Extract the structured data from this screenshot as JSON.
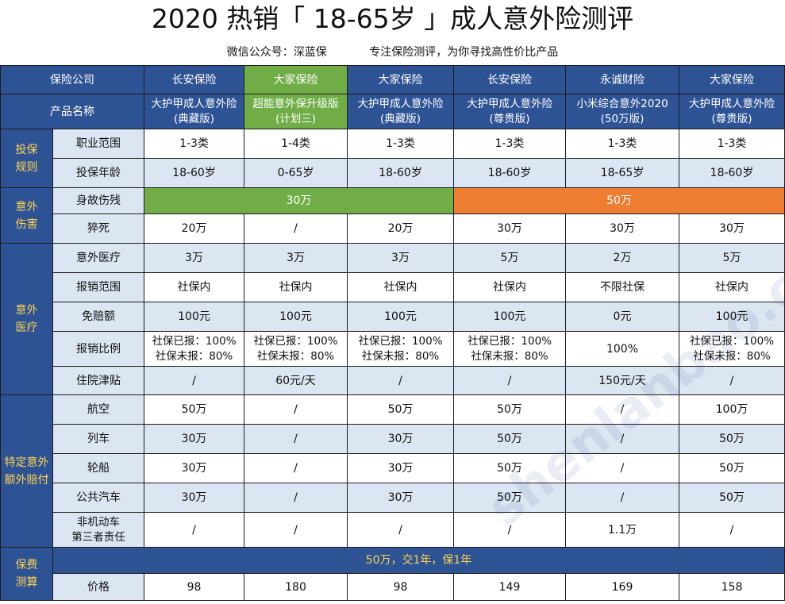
{
  "title": "2020 热销「 18-65岁 」成人意外险测评",
  "subtitle": "微信公众号：深蓝保            专注保险测评，为你寻找高性价比产品",
  "watermark": "shenlanbao.com 中立 | 专业 | 诚信",
  "header": {
    "company_label": "保险公司",
    "product_label": "产品名称",
    "companies": [
      "长安保险",
      "大家保险",
      "大家保险",
      "长安保险",
      "永诚财险",
      "大家保险"
    ],
    "products": [
      [
        "大护甲成人意外险",
        "(典藏版)"
      ],
      [
        "超能意外保升级版",
        "(计划三)"
      ],
      [
        "大护甲成人意外险",
        "(典藏版)"
      ],
      [
        "大护甲成人意外险",
        "(尊贵版)"
      ],
      [
        "小米综合意外2020",
        "(50万版)"
      ],
      [
        "大护甲成人意外险",
        "(尊贵版)"
      ]
    ]
  },
  "sections": {
    "rules": {
      "label": [
        "投保",
        "规则"
      ],
      "rows": [
        {
          "label": "职业范围",
          "values": [
            "1-3类",
            "1-4类",
            "1-3类",
            "1-3类",
            "1-3类",
            "1-3类"
          ]
        },
        {
          "label": "投保年龄",
          "values": [
            "18-60岁",
            "0-65岁",
            "18-60岁",
            "18-60岁",
            "18-65岁",
            "18-60岁"
          ]
        }
      ]
    },
    "injury": {
      "label": [
        "意外",
        "伤害"
      ],
      "death_label": "身故伤残",
      "death_group_a": "30万",
      "death_group_b": "50万",
      "sudden_label": "猝死",
      "sudden_values": [
        "20万",
        "/",
        "20万",
        "30万",
        "30万",
        "30万"
      ]
    },
    "medical": {
      "label": [
        "意外",
        "医疗"
      ],
      "rows": [
        {
          "label": "意外医疗",
          "values": [
            "3万",
            "3万",
            "3万",
            "5万",
            "2万",
            "5万"
          ]
        },
        {
          "label": "报销范围",
          "values": [
            "社保内",
            "社保内",
            "社保内",
            "社保内",
            "不限社保",
            "社保内"
          ]
        },
        {
          "label": "免赔额",
          "values": [
            "100元",
            "100元",
            "100元",
            "100元",
            "0元",
            "100元"
          ]
        }
      ],
      "ratio_label": "报销比例",
      "ratio_values": [
        [
          "社保已报：100%",
          "社保未报：80%"
        ],
        [
          "社保已报：100%",
          "社保未报：80%"
        ],
        [
          "社保已报：100%",
          "社保未报：80%"
        ],
        [
          "社保已报：100%",
          "社保未报：80%"
        ],
        [
          "100%",
          ""
        ],
        [
          "社保已报：100%",
          "社保未报：80%"
        ]
      ],
      "hospital_label": "住院津贴",
      "hospital_values": [
        "/",
        "60元/天",
        "/",
        "/",
        "150元/天",
        "/"
      ]
    },
    "special": {
      "label": [
        "特定意外",
        "额外赔付"
      ],
      "rows": [
        {
          "label": "航空",
          "values": [
            "50万",
            "/",
            "50万",
            "50万",
            "/",
            "100万"
          ]
        },
        {
          "label": "列车",
          "values": [
            "30万",
            "/",
            "30万",
            "50万",
            "/",
            "50万"
          ]
        },
        {
          "label": "轮船",
          "values": [
            "30万",
            "/",
            "30万",
            "50万",
            "/",
            "50万"
          ]
        },
        {
          "label": "公共汽车",
          "values": [
            "30万",
            "/",
            "30万",
            "50万",
            "/",
            "50万"
          ]
        }
      ],
      "third_party_label": [
        "非机动车",
        "第三者责任"
      ],
      "third_party_values": [
        "/",
        "/",
        "/",
        "/",
        "1.1万",
        "/"
      ]
    },
    "premium": {
      "label": [
        "保费",
        "测算"
      ],
      "banner": "50万，交1年，保1年",
      "price_label": "价格",
      "prices": [
        "98",
        "180",
        "98",
        "149",
        "169",
        "158"
      ]
    }
  },
  "colors": {
    "header_blue": "#2e5395",
    "accent_green": "#70ad47",
    "accent_orange": "#ed7d31",
    "category_text": "#ffd34d",
    "light_row": "#dce6f2"
  }
}
